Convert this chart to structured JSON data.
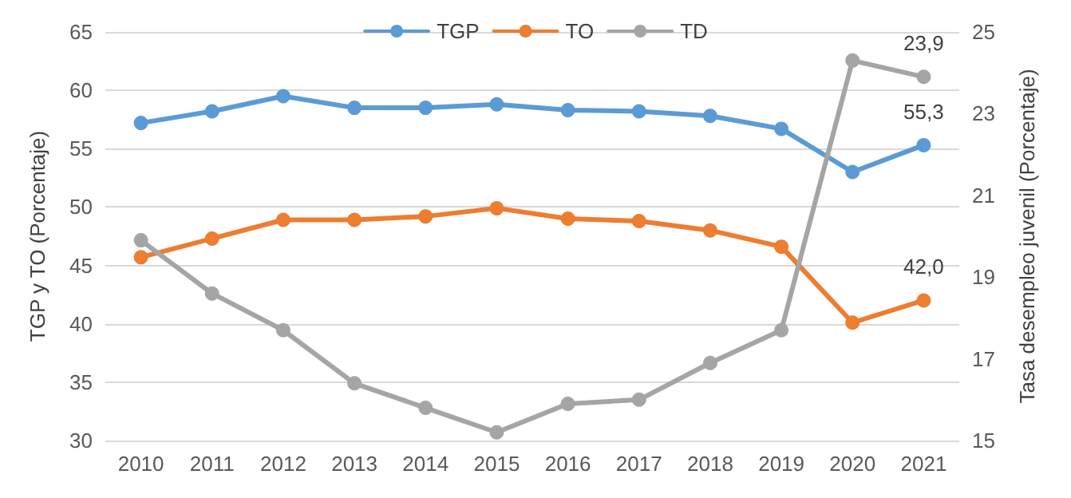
{
  "chart_data": {
    "type": "line",
    "ylabel": "TGP y TO (Porcentaje)",
    "y2label": "Tasa desempleo juvenil (Porcentaje)",
    "categories": [
      "2010",
      "2011",
      "2012",
      "2013",
      "2014",
      "2015",
      "2016",
      "2017",
      "2018",
      "2019",
      "2020",
      "2021"
    ],
    "series": [
      {
        "name": "TGP",
        "color": "#5b9bd5",
        "values": [
          57.2,
          58.2,
          59.5,
          58.5,
          58.5,
          58.8,
          58.3,
          58.2,
          57.8,
          56.7,
          53.0,
          55.3
        ],
        "value_labels": [
          null,
          null,
          null,
          null,
          null,
          null,
          null,
          null,
          null,
          null,
          null,
          "55,3"
        ]
      },
      {
        "name": "TO",
        "color": "#ed7d31",
        "values": [
          45.7,
          47.3,
          48.9,
          48.9,
          49.2,
          49.9,
          49.0,
          48.8,
          48.0,
          46.6,
          40.1,
          42.0
        ],
        "value_labels": [
          null,
          null,
          null,
          null,
          null,
          null,
          null,
          null,
          null,
          null,
          null,
          "42,0"
        ]
      },
      {
        "name": "TD",
        "color": "#a5a5a5",
        "axis": "y2",
        "values": [
          19.9,
          18.6,
          17.7,
          16.4,
          15.8,
          15.2,
          15.9,
          16.0,
          16.9,
          17.7,
          24.3,
          23.9
        ],
        "value_labels": [
          null,
          null,
          null,
          null,
          null,
          null,
          null,
          null,
          null,
          null,
          null,
          "23,9"
        ]
      }
    ],
    "ylim": [
      30,
      65
    ],
    "yticks": [
      30,
      35,
      40,
      45,
      50,
      55,
      60,
      65
    ],
    "y2lim": [
      15,
      25
    ],
    "y2ticks": [
      15,
      17,
      19,
      21,
      23,
      25
    ],
    "grid": "y",
    "legend": "top",
    "marker": "circle",
    "line_style": "solid"
  }
}
